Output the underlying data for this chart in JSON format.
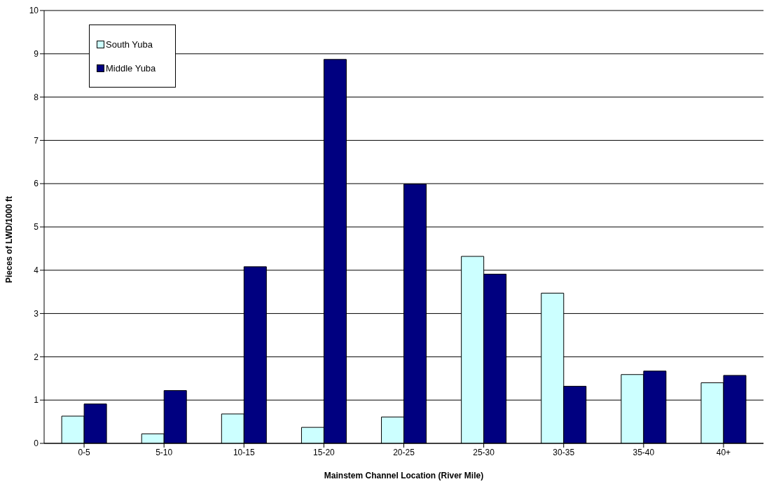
{
  "chart_data": {
    "type": "bar",
    "xlabel": "Mainstem Channel Location (River Mile)",
    "ylabel": "Pieces of LWD/1000 ft",
    "categories": [
      "0-5",
      "5-10",
      "10-15",
      "15-20",
      "20-25",
      "25-30",
      "30-35",
      "35-40",
      "40+"
    ],
    "series": [
      {
        "name": "South Yuba",
        "color": "#ccffff",
        "values": [
          0.63,
          0.22,
          0.68,
          0.37,
          0.61,
          4.32,
          3.47,
          1.59,
          1.4
        ]
      },
      {
        "name": "Middle Yuba",
        "color": "#000080",
        "values": [
          0.91,
          1.22,
          4.08,
          8.87,
          5.99,
          3.91,
          1.32,
          1.67,
          1.57
        ]
      }
    ],
    "ylim": [
      0,
      10
    ],
    "yticks": [
      0,
      1,
      2,
      3,
      4,
      5,
      6,
      7,
      8,
      9,
      10
    ],
    "grid": "y",
    "legend": "top left"
  }
}
